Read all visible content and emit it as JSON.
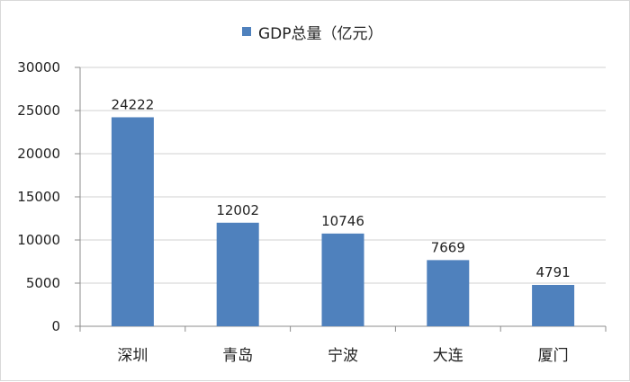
{
  "legend": {
    "label": "GDP总量（亿元）",
    "color": "#4F81BD"
  },
  "chart_data": {
    "type": "bar",
    "categories": [
      "深圳",
      "青岛",
      "宁波",
      "大连",
      "厦门"
    ],
    "series": [
      {
        "name": "GDP总量（亿元）",
        "values": [
          24222,
          12002,
          10746,
          7669,
          4791
        ]
      }
    ],
    "data_labels": [
      "24222",
      "12002",
      "10746",
      "7669",
      "4791"
    ],
    "ylim": [
      0,
      30000
    ],
    "yticks": [
      0,
      5000,
      10000,
      15000,
      20000,
      25000,
      30000
    ],
    "ytick_labels": [
      "0",
      "5000",
      "10000",
      "15000",
      "20000",
      "25000",
      "30000"
    ],
    "grid": true,
    "legend_position": "top-center",
    "colors": {
      "bar": "#4F81BD",
      "grid": "#d0d0d0",
      "axis": "#8c8c8c",
      "text": "#222222"
    }
  }
}
